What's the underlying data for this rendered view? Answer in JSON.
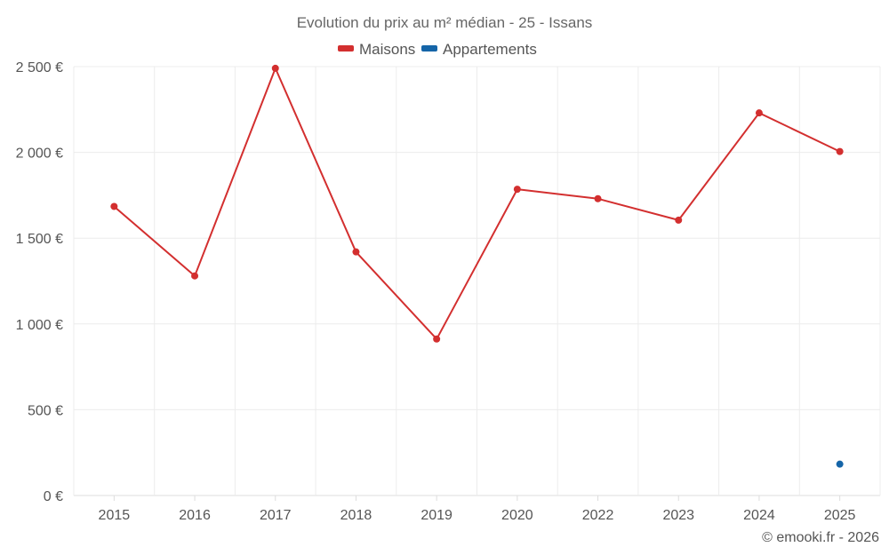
{
  "chart_data": {
    "type": "line",
    "title": "Evolution du prix au m² médian - 25 - Issans",
    "categories": [
      "2015",
      "2016",
      "2017",
      "2018",
      "2019",
      "2020",
      "2022",
      "2023",
      "2024",
      "2025"
    ],
    "series": [
      {
        "name": "Maisons",
        "color": "#d32f2f",
        "values": [
          1685,
          1280,
          2490,
          1420,
          912,
          1785,
          1730,
          1605,
          2230,
          2005
        ]
      },
      {
        "name": "Appartements",
        "color": "#1565a8",
        "values": [
          null,
          null,
          null,
          null,
          null,
          null,
          null,
          null,
          null,
          183
        ]
      }
    ],
    "ylim": [
      0,
      2500
    ],
    "yticks": [
      0,
      500,
      1000,
      1500,
      2000,
      2500
    ],
    "ytick_labels": [
      "0 €",
      "500 €",
      "1 000 €",
      "1 500 €",
      "2 000 €",
      "2 500 €"
    ],
    "xlabel": "",
    "ylabel": "",
    "grid": true,
    "legend_position": "top-center"
  },
  "credit": "© emooki.fr - 2026"
}
